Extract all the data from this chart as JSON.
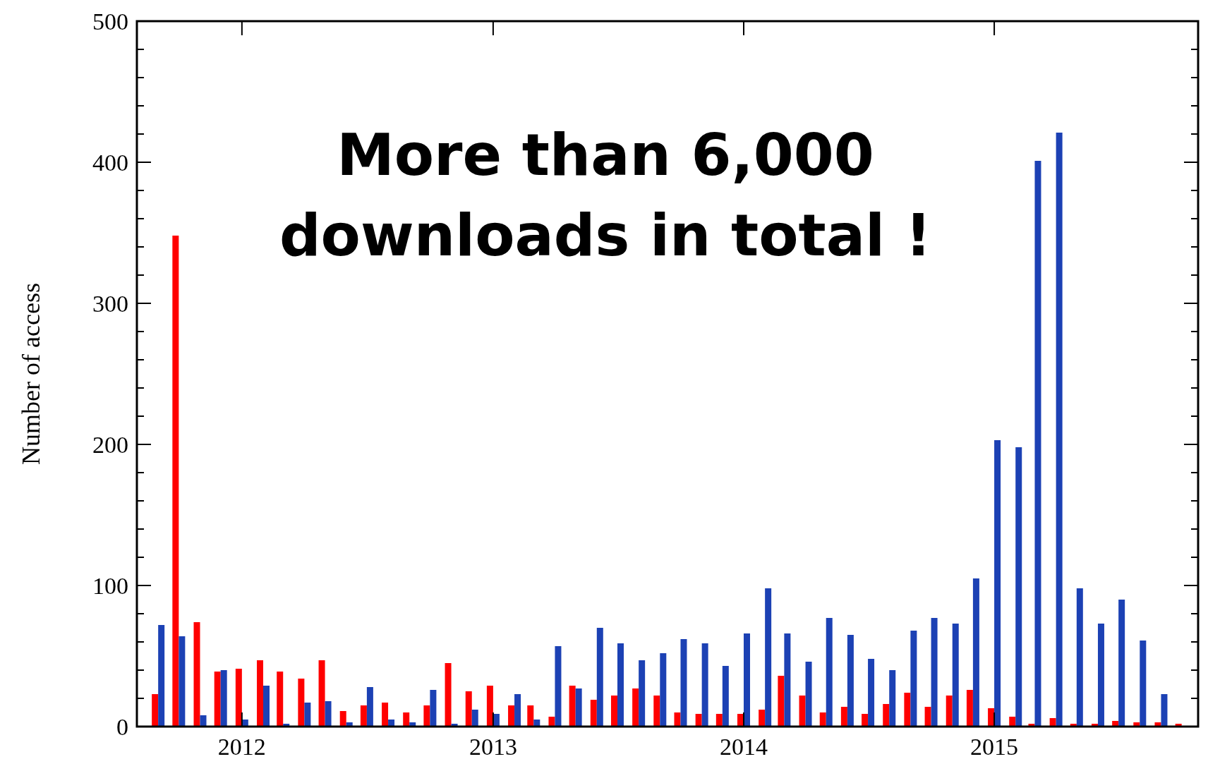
{
  "chart_data": {
    "type": "bar",
    "ylabel": "Number of access",
    "annotations": [
      "More than 6,000 downloads in total !"
    ],
    "x": [
      "2011-09",
      "2011-10",
      "2011-11",
      "2011-12",
      "2012-01",
      "2012-02",
      "2012-03",
      "2012-04",
      "2012-05",
      "2012-06",
      "2012-07",
      "2012-08",
      "2012-09",
      "2012-10",
      "2012-11",
      "2012-12",
      "2013-01",
      "2013-02",
      "2013-03",
      "2013-04",
      "2013-05",
      "2013-06",
      "2013-07",
      "2013-08",
      "2013-09",
      "2013-10",
      "2013-11",
      "2013-12",
      "2014-01",
      "2014-02",
      "2014-03",
      "2014-04",
      "2014-05",
      "2014-06",
      "2014-07",
      "2014-08",
      "2014-09",
      "2014-10",
      "2014-11",
      "2014-12",
      "2015-01",
      "2015-02",
      "2015-03",
      "2015-04",
      "2015-05",
      "2015-06",
      "2015-07",
      "2015-08",
      "2015-09",
      "2015-10"
    ],
    "series": [
      {
        "color": "#ff0000",
        "values": [
          23,
          348,
          74,
          39,
          41,
          47,
          39,
          34,
          47,
          11,
          15,
          17,
          10,
          15,
          45,
          25,
          29,
          15,
          15,
          7,
          29,
          19,
          22,
          27,
          22,
          10,
          9,
          9,
          9,
          12,
          36,
          22,
          10,
          14,
          9,
          16,
          24,
          14,
          22,
          26,
          13,
          7,
          2,
          6,
          2,
          2,
          4,
          3,
          3,
          2
        ]
      },
      {
        "color": "#1c41b4",
        "values": [
          72,
          64,
          8,
          40,
          5,
          29,
          2,
          17,
          18,
          3,
          28,
          5,
          3,
          26,
          2,
          12,
          9,
          23,
          5,
          57,
          27,
          70,
          59,
          47,
          52,
          62,
          59,
          43,
          66,
          98,
          66,
          46,
          77,
          65,
          48,
          40,
          68,
          77,
          73,
          105,
          203,
          198,
          401,
          421,
          98,
          73,
          90,
          61,
          23,
          null
        ]
      }
    ],
    "xlim": [
      "2011-08-01",
      "2015-10-25"
    ],
    "xticks": [
      {
        "value": "2012-01-01",
        "label": "2012"
      },
      {
        "value": "2013-01-01",
        "label": "2013"
      },
      {
        "value": "2014-01-01",
        "label": "2014"
      },
      {
        "value": "2015-01-01",
        "label": "2015"
      }
    ],
    "ylim": [
      0,
      500
    ],
    "yticks": [
      0,
      {
        "value": 20,
        "label": null
      },
      {
        "value": 40,
        "label": null
      },
      {
        "value": 60,
        "label": null
      },
      {
        "value": 80,
        "label": null
      },
      100,
      {
        "value": 120,
        "label": null
      },
      {
        "value": 140,
        "label": null
      },
      {
        "value": 160,
        "label": null
      },
      {
        "value": 180,
        "label": null
      },
      200,
      {
        "value": 220,
        "label": null
      },
      {
        "value": 240,
        "label": null
      },
      {
        "value": 260,
        "label": null
      },
      {
        "value": 280,
        "label": null
      },
      300,
      {
        "value": 320,
        "label": null
      },
      {
        "value": 340,
        "label": null
      },
      {
        "value": 360,
        "label": null
      },
      {
        "value": 380,
        "label": null
      },
      400,
      {
        "value": 420,
        "label": null
      },
      {
        "value": 440,
        "label": null
      },
      {
        "value": 460,
        "label": null
      },
      {
        "value": 480,
        "label": null
      },
      500
    ],
    "grid": false
  }
}
